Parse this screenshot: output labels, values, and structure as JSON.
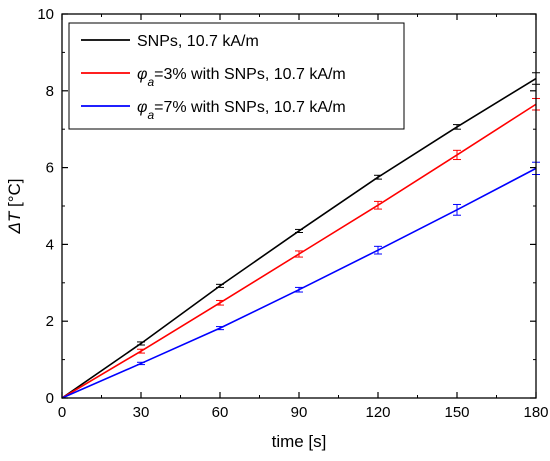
{
  "chart_data": {
    "type": "line",
    "xlabel": "time [s]",
    "ylabel": {
      "symbol": "ΔT",
      "unit": " [°C]"
    },
    "xlim": [
      0,
      180
    ],
    "ylim": [
      0,
      10
    ],
    "x_ticks": [
      "0",
      "30",
      "60",
      "90",
      "120",
      "150",
      "180"
    ],
    "y_ticks": [
      "0",
      "2",
      "4",
      "6",
      "8",
      "10"
    ],
    "grid": false,
    "legend_position": "top-left",
    "x": [
      0,
      30,
      60,
      90,
      120,
      150,
      180
    ],
    "series": [
      {
        "name": "SNPs, 10.7 kA/m",
        "legend": {
          "symbol": "",
          "subscript": "",
          "text": "SNPs, 10.7 kA/m"
        },
        "color": "#000000",
        "values": [
          0,
          1.42,
          2.92,
          4.35,
          5.75,
          7.06,
          8.32
        ],
        "errors": [
          0,
          0.04,
          0.04,
          0.04,
          0.05,
          0.06,
          0.15
        ]
      },
      {
        "name": "φa=3% with SNPs, 10.7 kA/m",
        "legend": {
          "symbol": "φ",
          "subscript": "a",
          "text": "=3% with SNPs, 10.7 kA/m"
        },
        "color": "#ff0000",
        "values": [
          0,
          1.22,
          2.48,
          3.75,
          5.02,
          6.33,
          7.65
        ],
        "errors": [
          0,
          0.05,
          0.06,
          0.08,
          0.1,
          0.12,
          0.15
        ]
      },
      {
        "name": "φa=7% with SNPs, 10.7 kA/m",
        "legend": {
          "symbol": "φ",
          "subscript": "a",
          "text": "=7% with SNPs, 10.7 kA/m"
        },
        "color": "#0000ff",
        "values": [
          0,
          0.9,
          1.82,
          2.82,
          3.85,
          4.9,
          5.98
        ],
        "errors": [
          0,
          0.03,
          0.04,
          0.06,
          0.1,
          0.14,
          0.16
        ]
      }
    ]
  }
}
